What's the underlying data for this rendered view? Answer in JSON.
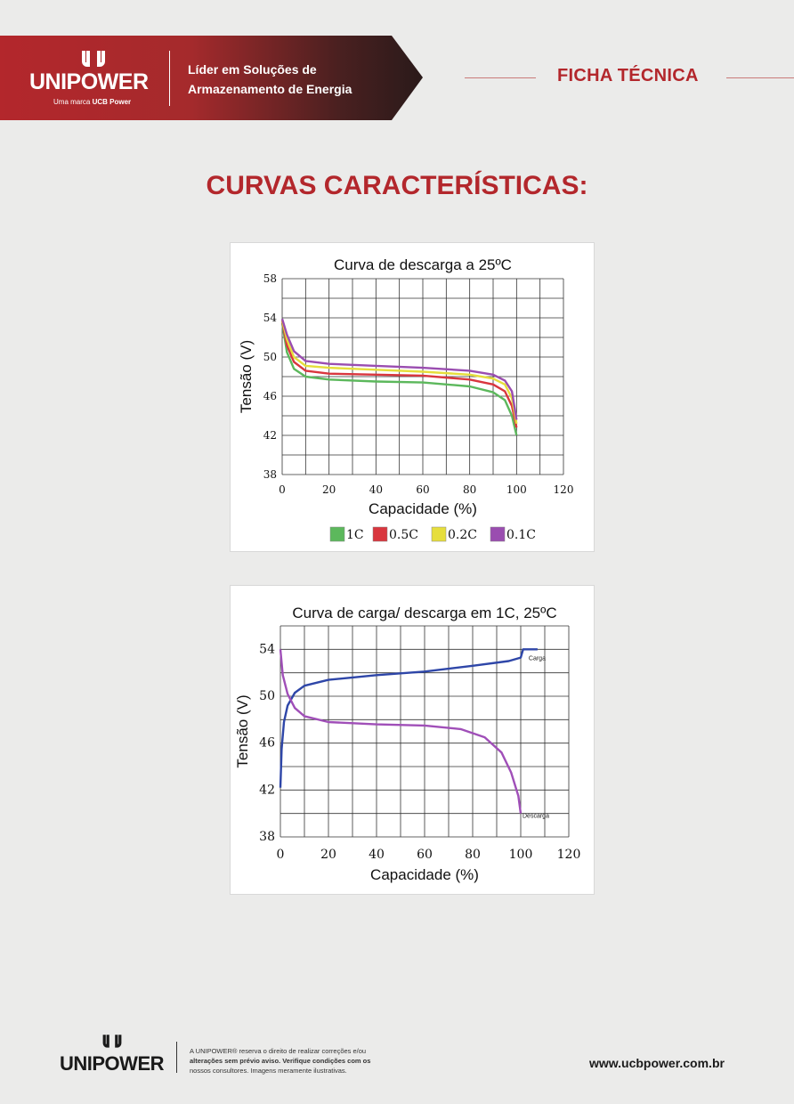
{
  "header": {
    "brand": "UNIPOWER",
    "brand_sub_prefix": "Uma marca",
    "brand_sub_bold": "UCB Power",
    "tagline_line1": "Líder em Soluções de",
    "tagline_line2": "Armazenamento de Energia",
    "doc_type": "FICHA TÉCNICA",
    "accent_color": "#b3272c"
  },
  "section_title": "CURVAS CARACTERÍSTICAS:",
  "chart_data": [
    {
      "type": "line",
      "title": "Curva de descarga a 25ºC",
      "xlabel": "Capacidade (%)",
      "ylabel": "Tensão (V)",
      "xlim": [
        0,
        120
      ],
      "ylim": [
        38,
        58
      ],
      "xticks": [
        "0",
        "20",
        "40",
        "60",
        "80",
        "100",
        "120"
      ],
      "yticks": [
        "38",
        "42",
        "46",
        "50",
        "54",
        "58"
      ],
      "grid": true,
      "legend": "bottom",
      "series": [
        {
          "name": "1C",
          "color": "#5cb85c",
          "points": [
            [
              0,
              53.5
            ],
            [
              2,
              50.5
            ],
            [
              5,
              48.8
            ],
            [
              10,
              48.0
            ],
            [
              20,
              47.7
            ],
            [
              40,
              47.5
            ],
            [
              60,
              47.4
            ],
            [
              80,
              47.0
            ],
            [
              90,
              46.4
            ],
            [
              95,
              45.6
            ],
            [
              98,
              44.0
            ],
            [
              100,
              42.0
            ]
          ]
        },
        {
          "name": "0.5C",
          "color": "#d9363e",
          "points": [
            [
              0,
              53.7
            ],
            [
              2,
              51.2
            ],
            [
              5,
              49.5
            ],
            [
              10,
              48.6
            ],
            [
              20,
              48.3
            ],
            [
              40,
              48.2
            ],
            [
              60,
              48.1
            ],
            [
              80,
              47.7
            ],
            [
              90,
              47.2
            ],
            [
              95,
              46.5
            ],
            [
              98,
              45.0
            ],
            [
              100,
              42.8
            ]
          ]
        },
        {
          "name": "0.2C",
          "color": "#e6de3c",
          "points": [
            [
              0,
              53.8
            ],
            [
              2,
              51.8
            ],
            [
              5,
              50.0
            ],
            [
              10,
              49.1
            ],
            [
              20,
              48.9
            ],
            [
              40,
              48.7
            ],
            [
              60,
              48.5
            ],
            [
              80,
              48.2
            ],
            [
              90,
              47.8
            ],
            [
              95,
              47.2
            ],
            [
              98,
              45.8
            ],
            [
              100,
              43.2
            ]
          ]
        },
        {
          "name": "0.1C",
          "color": "#9a4db0",
          "points": [
            [
              0,
              53.9
            ],
            [
              2,
              52.3
            ],
            [
              5,
              50.6
            ],
            [
              10,
              49.6
            ],
            [
              20,
              49.3
            ],
            [
              40,
              49.1
            ],
            [
              60,
              48.9
            ],
            [
              80,
              48.6
            ],
            [
              90,
              48.2
            ],
            [
              95,
              47.6
            ],
            [
              98,
              46.5
            ],
            [
              100,
              43.6
            ]
          ]
        }
      ]
    },
    {
      "type": "line",
      "title": "Curva de carga/ descarga em 1C, 25ºC",
      "xlabel": "Capacidade (%)",
      "ylabel": "Tensão (V)",
      "xlim": [
        0,
        120
      ],
      "ylim": [
        38,
        56
      ],
      "xticks": [
        "0",
        "20",
        "40",
        "60",
        "80",
        "100",
        "120"
      ],
      "yticks": [
        "38",
        "42",
        "46",
        "50",
        "54"
      ],
      "grid": true,
      "series": [
        {
          "name": "Carga",
          "color": "#2e46a8",
          "points": [
            [
              0,
              42.2
            ],
            [
              0.5,
              45.5
            ],
            [
              1.5,
              47.8
            ],
            [
              3,
              49.2
            ],
            [
              6,
              50.3
            ],
            [
              10,
              50.9
            ],
            [
              20,
              51.4
            ],
            [
              40,
              51.8
            ],
            [
              60,
              52.1
            ],
            [
              80,
              52.6
            ],
            [
              95,
              53.0
            ],
            [
              100,
              53.3
            ],
            [
              101,
              54.0
            ],
            [
              107,
              54.0
            ]
          ]
        },
        {
          "name": "Descarga",
          "color": "#a04fb8",
          "points": [
            [
              0,
              54.0
            ],
            [
              1,
              51.8
            ],
            [
              3,
              50.2
            ],
            [
              6,
              49.0
            ],
            [
              10,
              48.3
            ],
            [
              20,
              47.8
            ],
            [
              40,
              47.6
            ],
            [
              60,
              47.5
            ],
            [
              75,
              47.2
            ],
            [
              85,
              46.5
            ],
            [
              92,
              45.2
            ],
            [
              96,
              43.5
            ],
            [
              99,
              41.5
            ],
            [
              100,
              40.0
            ]
          ]
        }
      ]
    }
  ],
  "footer": {
    "brand": "UNIPOWER",
    "disclaimer_line1": "A UNIPOWER® reserva o direito de realizar correções e/ou",
    "disclaimer_line2": "alterações sem prévio aviso. Verifique condições com os",
    "disclaimer_line3": "nossos consultores. Imagens meramente ilustrativas.",
    "website": "www.ucbpower.com.br"
  }
}
